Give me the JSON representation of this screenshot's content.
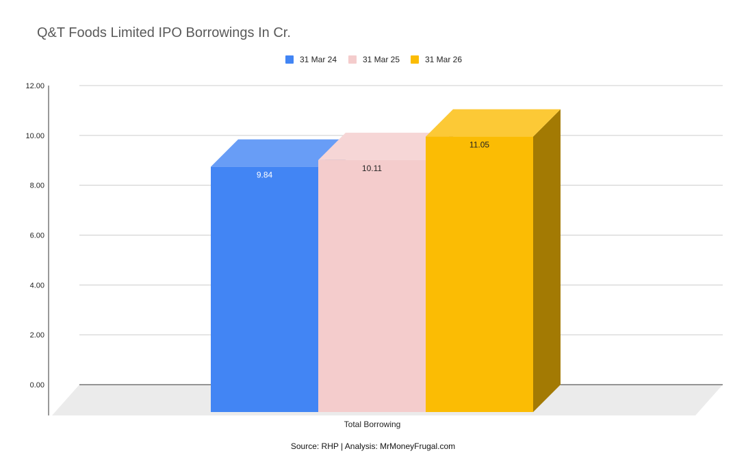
{
  "chart_data": {
    "type": "bar",
    "title": "Q&T Foods Limited IPO Borrowings In Cr.",
    "categories": [
      "Total Borrowing"
    ],
    "series": [
      {
        "name": "31 Mar 24",
        "values": [
          9.84
        ],
        "color": "#4285f4"
      },
      {
        "name": "31 Mar 25",
        "values": [
          10.11
        ],
        "color": "#f4cccc"
      },
      {
        "name": "31 Mar 26",
        "values": [
          11.05
        ],
        "color": "#fbbc04"
      }
    ],
    "data_labels": [
      "9.84",
      "10.11",
      "11.05"
    ],
    "yticks": [
      "0.00",
      "2.00",
      "4.00",
      "6.00",
      "8.00",
      "10.00",
      "12.00"
    ],
    "ylim": [
      0,
      12
    ],
    "grid": true,
    "legend_position": "top",
    "style": "3d-bar",
    "xlabel": "",
    "ylabel": ""
  },
  "footer": {
    "source": "Source: RHP | Analysis: MrMoneyFrugal.com"
  }
}
